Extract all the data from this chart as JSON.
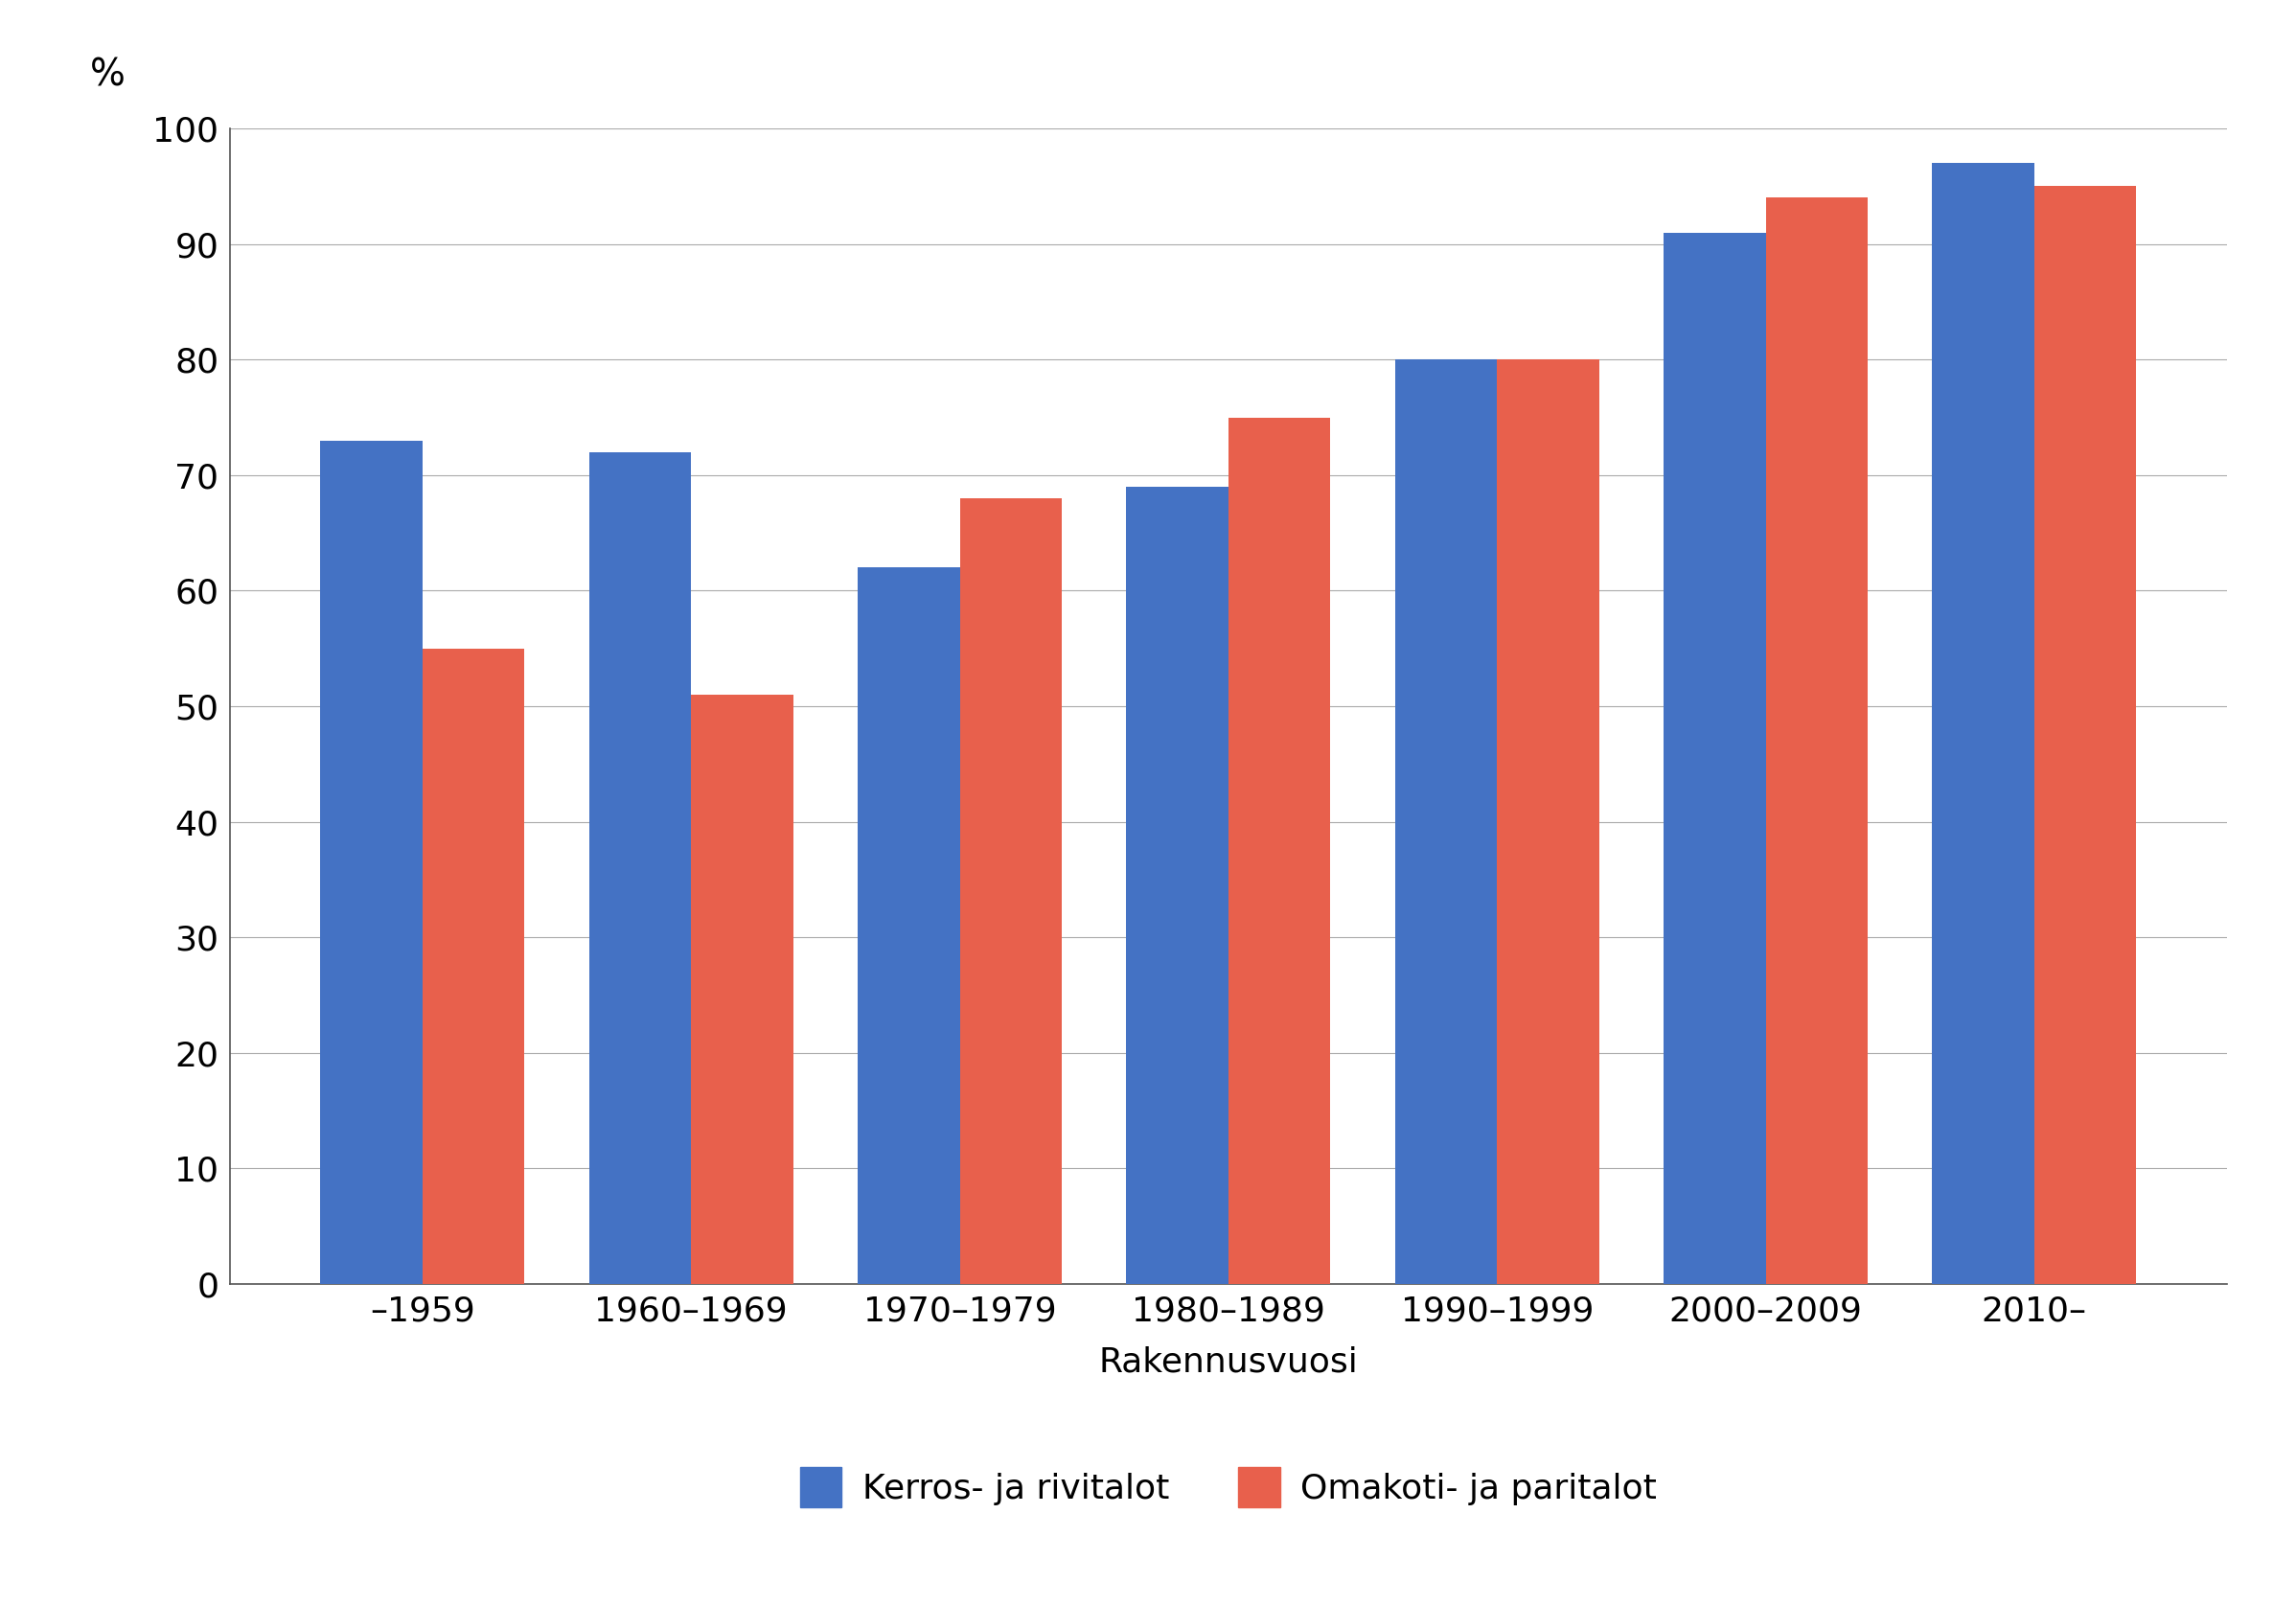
{
  "categories": [
    "–1959",
    "1960–1969",
    "1970–1979",
    "1980–1989",
    "1990–1999",
    "2000–2009",
    "2010–"
  ],
  "kerros_rivitalot": [
    73,
    72,
    62,
    69,
    80,
    91,
    97
  ],
  "omakoti_paritalot": [
    55,
    51,
    68,
    75,
    80,
    94,
    95
  ],
  "color_blue": "#4472c4",
  "color_orange": "#e8604c",
  "xlabel": "Rakennusvuosi",
  "ylabel_text": "%",
  "ylim": [
    0,
    100
  ],
  "yticks": [
    0,
    10,
    20,
    30,
    40,
    50,
    60,
    70,
    80,
    90,
    100
  ],
  "legend_blue": "Kerros- ja rivitalot",
  "legend_orange": "Omakoti- ja paritalot",
  "bar_width": 0.38,
  "background_color": "#ffffff",
  "grid_color": "#aaaaaa",
  "label_fontsize": 26,
  "tick_fontsize": 26,
  "legend_fontsize": 26,
  "ylabel_fontsize": 28
}
